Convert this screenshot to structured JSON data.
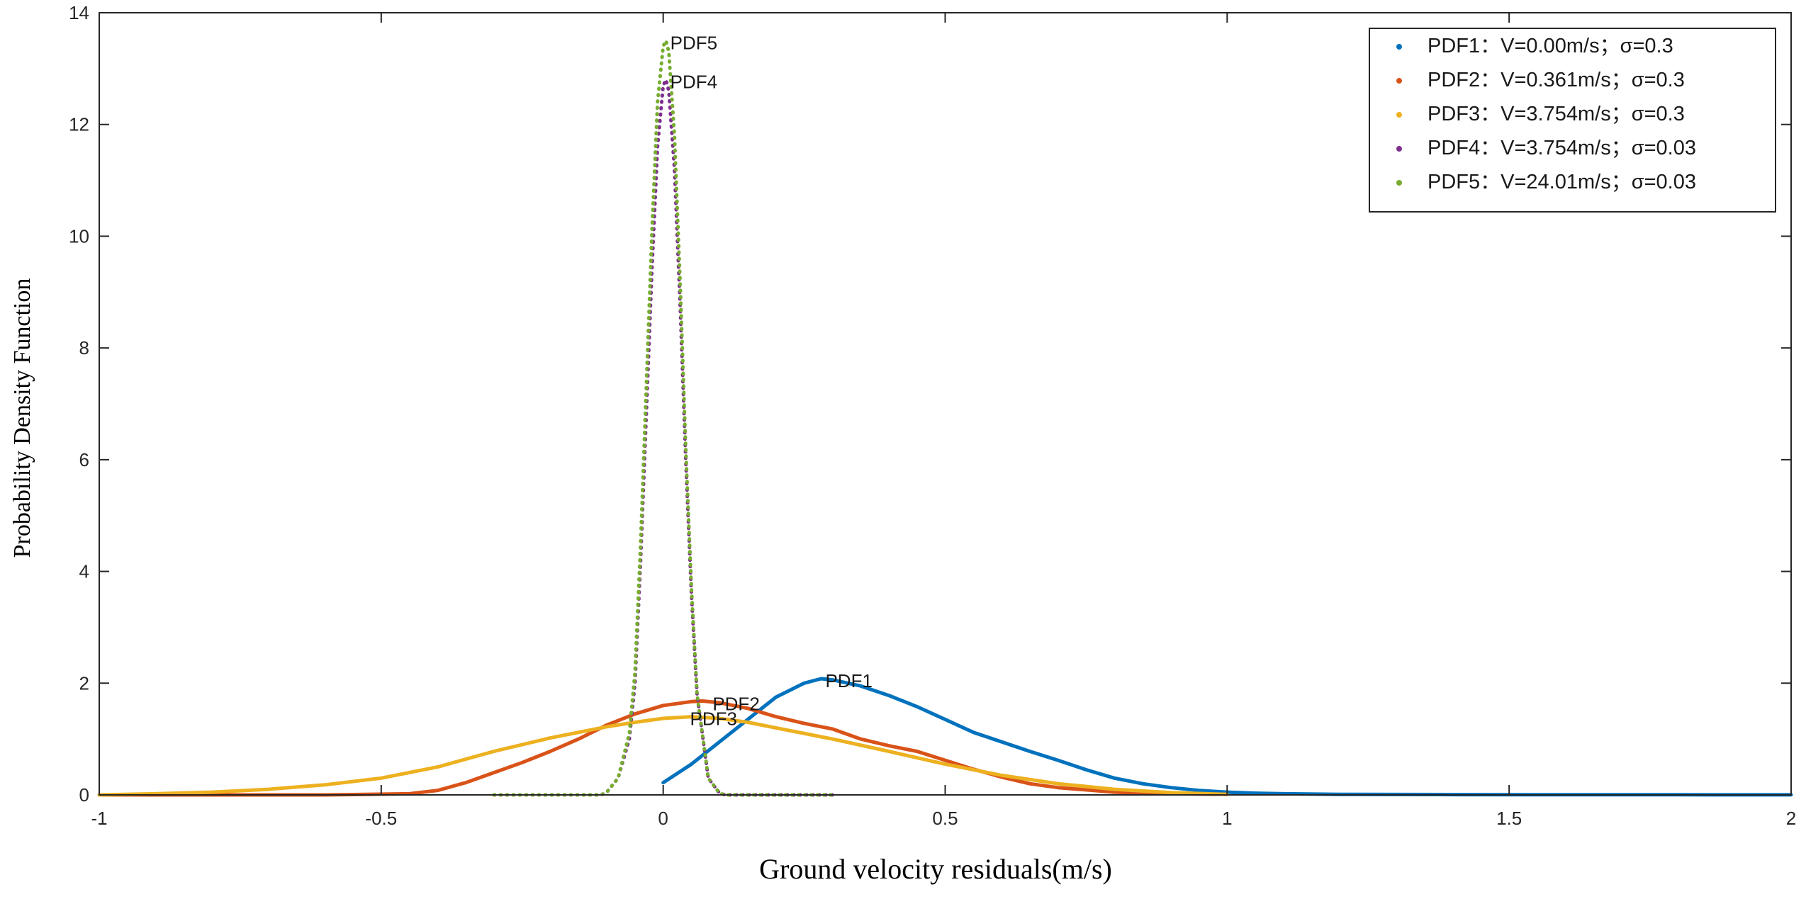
{
  "chart_data": {
    "type": "line",
    "title": "",
    "xlabel": "Ground velocity residuals(m/s)",
    "ylabel": "Probability Density Function",
    "xlim": [
      -1,
      2
    ],
    "ylim": [
      0,
      14
    ],
    "xticks": [
      -1,
      -0.5,
      0,
      0.5,
      1,
      1.5,
      2
    ],
    "xtick_labels": [
      "-1",
      "-0.5",
      "0",
      "0.5",
      "1",
      "1.5",
      "2"
    ],
    "yticks": [
      0,
      2,
      4,
      6,
      8,
      10,
      12,
      14
    ],
    "ytick_labels": [
      "0",
      "2",
      "4",
      "6",
      "8",
      "10",
      "12",
      "14"
    ],
    "grid": false,
    "legend_position": "top-right",
    "series": [
      {
        "name": "PDF1",
        "legend": "PDF1：V=0.00m/s；σ=0.3",
        "color": "#0072BD",
        "style": "solid",
        "x": [
          0,
          0.05,
          0.1,
          0.15,
          0.2,
          0.25,
          0.28,
          0.3,
          0.35,
          0.4,
          0.45,
          0.5,
          0.55,
          0.6,
          0.65,
          0.7,
          0.75,
          0.8,
          0.85,
          0.9,
          0.95,
          1.0,
          1.05,
          1.1,
          1.2,
          1.4,
          1.6,
          1.8,
          2.0
        ],
        "values": [
          0.22,
          0.55,
          0.95,
          1.35,
          1.75,
          2.0,
          2.08,
          2.06,
          1.95,
          1.78,
          1.58,
          1.35,
          1.12,
          0.95,
          0.78,
          0.62,
          0.45,
          0.3,
          0.2,
          0.13,
          0.08,
          0.05,
          0.03,
          0.02,
          0.01,
          0.005,
          0.003,
          0.002,
          0.001
        ],
        "label": {
          "text": "PDF1",
          "x": 0.28,
          "y": 2.08
        }
      },
      {
        "name": "PDF2",
        "legend": "PDF2：V=0.361m/s；σ=0.3",
        "color": "#D95319",
        "style": "solid",
        "x": [
          -1,
          -0.6,
          -0.45,
          -0.4,
          -0.35,
          -0.3,
          -0.25,
          -0.2,
          -0.15,
          -0.1,
          -0.05,
          0,
          0.05,
          0.07,
          0.1,
          0.15,
          0.2,
          0.25,
          0.3,
          0.35,
          0.4,
          0.45,
          0.5,
          0.55,
          0.6,
          0.65,
          0.7,
          0.75,
          0.8,
          0.9,
          1.0
        ],
        "values": [
          0,
          0,
          0.02,
          0.08,
          0.22,
          0.4,
          0.58,
          0.78,
          1.0,
          1.25,
          1.45,
          1.6,
          1.67,
          1.68,
          1.65,
          1.55,
          1.4,
          1.28,
          1.18,
          1.0,
          0.88,
          0.78,
          0.62,
          0.46,
          0.32,
          0.2,
          0.13,
          0.09,
          0.05,
          0.02,
          0.01
        ],
        "label": {
          "text": "PDF2",
          "x": 0.08,
          "y": 1.67
        }
      },
      {
        "name": "PDF3",
        "legend": "PDF3：V=3.754m/s；σ=0.3",
        "color": "#EDB120",
        "style": "solid",
        "x": [
          -1,
          -0.9,
          -0.8,
          -0.7,
          -0.6,
          -0.5,
          -0.4,
          -0.3,
          -0.2,
          -0.1,
          -0.05,
          0,
          0.05,
          0.1,
          0.15,
          0.2,
          0.3,
          0.4,
          0.5,
          0.6,
          0.7,
          0.8,
          0.9,
          1.0
        ],
        "values": [
          0.0,
          0.02,
          0.05,
          0.1,
          0.18,
          0.3,
          0.5,
          0.78,
          1.02,
          1.22,
          1.3,
          1.37,
          1.4,
          1.37,
          1.3,
          1.2,
          1.0,
          0.78,
          0.55,
          0.35,
          0.2,
          0.1,
          0.04,
          0.01
        ],
        "label": {
          "text": "PDF3",
          "x": 0.04,
          "y": 1.4
        }
      },
      {
        "name": "PDF4",
        "legend": "PDF4：V=3.754m/s；σ=0.03",
        "color": "#7E2F8E",
        "style": "dotted",
        "x": [
          -0.3,
          -0.11,
          -0.1,
          -0.08,
          -0.06,
          -0.05,
          -0.04,
          -0.03,
          -0.02,
          -0.01,
          0,
          0.005,
          0.01,
          0.02,
          0.03,
          0.04,
          0.05,
          0.06,
          0.08,
          0.1,
          0.11,
          0.3
        ],
        "values": [
          0,
          0,
          0.05,
          0.3,
          1.0,
          2.0,
          4.2,
          6.8,
          9.4,
          11.6,
          12.7,
          12.8,
          12.6,
          11.2,
          8.8,
          6.0,
          3.6,
          1.8,
          0.3,
          0.03,
          0,
          0
        ],
        "label": {
          "text": "PDF4",
          "x": 0.005,
          "y": 12.8
        }
      },
      {
        "name": "PDF5",
        "legend": "PDF5：V=24.01m/s；σ=0.03",
        "color": "#77AC30",
        "style": "dotted",
        "x": [
          -0.3,
          -0.11,
          -0.1,
          -0.08,
          -0.06,
          -0.05,
          -0.04,
          -0.03,
          -0.02,
          -0.01,
          0,
          0.005,
          0.01,
          0.02,
          0.03,
          0.04,
          0.05,
          0.06,
          0.08,
          0.1,
          0.11,
          0.3
        ],
        "values": [
          0,
          0,
          0.05,
          0.3,
          1.1,
          2.2,
          4.5,
          7.3,
          10.1,
          12.4,
          13.4,
          13.5,
          13.3,
          11.8,
          9.2,
          6.2,
          3.7,
          1.8,
          0.3,
          0.03,
          0,
          0
        ],
        "label": {
          "text": "PDF5",
          "x": 0.005,
          "y": 13.5
        }
      }
    ]
  }
}
